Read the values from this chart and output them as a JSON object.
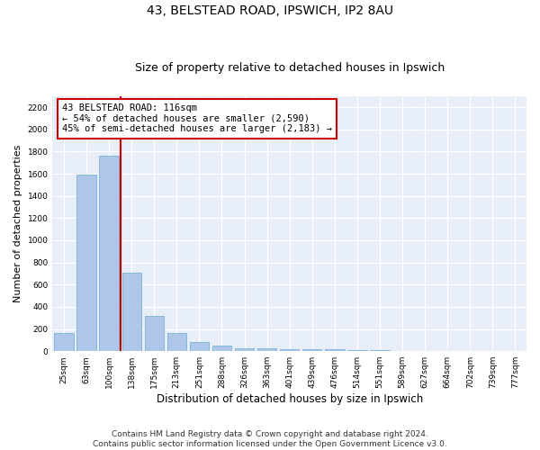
{
  "title": "43, BELSTEAD ROAD, IPSWICH, IP2 8AU",
  "subtitle": "Size of property relative to detached houses in Ipswich",
  "xlabel": "Distribution of detached houses by size in Ipswich",
  "ylabel": "Number of detached properties",
  "categories": [
    "25sqm",
    "63sqm",
    "100sqm",
    "138sqm",
    "175sqm",
    "213sqm",
    "251sqm",
    "288sqm",
    "326sqm",
    "363sqm",
    "401sqm",
    "439sqm",
    "476sqm",
    "514sqm",
    "551sqm",
    "589sqm",
    "627sqm",
    "664sqm",
    "702sqm",
    "739sqm",
    "777sqm"
  ],
  "values": [
    160,
    1590,
    1760,
    710,
    315,
    160,
    85,
    50,
    30,
    25,
    20,
    15,
    14,
    8,
    6,
    4,
    3,
    2,
    2,
    1,
    1
  ],
  "bar_color": "#aec6e8",
  "bar_edge_color": "#6aaad4",
  "vline_x": 2.5,
  "vline_color": "#cc0000",
  "annotation_text": "43 BELSTEAD ROAD: 116sqm\n← 54% of detached houses are smaller (2,590)\n45% of semi-detached houses are larger (2,183) →",
  "annotation_box_color": "#ffffff",
  "annotation_box_edgecolor": "#cc0000",
  "ylim": [
    0,
    2300
  ],
  "yticks": [
    0,
    200,
    400,
    600,
    800,
    1000,
    1200,
    1400,
    1600,
    1800,
    2000,
    2200
  ],
  "background_color": "#e8eef8",
  "grid_color": "#ffffff",
  "fig_background": "#ffffff",
  "footer_line1": "Contains HM Land Registry data © Crown copyright and database right 2024.",
  "footer_line2": "Contains public sector information licensed under the Open Government Licence v3.0.",
  "title_fontsize": 10,
  "subtitle_fontsize": 9,
  "xlabel_fontsize": 8.5,
  "ylabel_fontsize": 8,
  "tick_fontsize": 6.5,
  "footer_fontsize": 6.5
}
